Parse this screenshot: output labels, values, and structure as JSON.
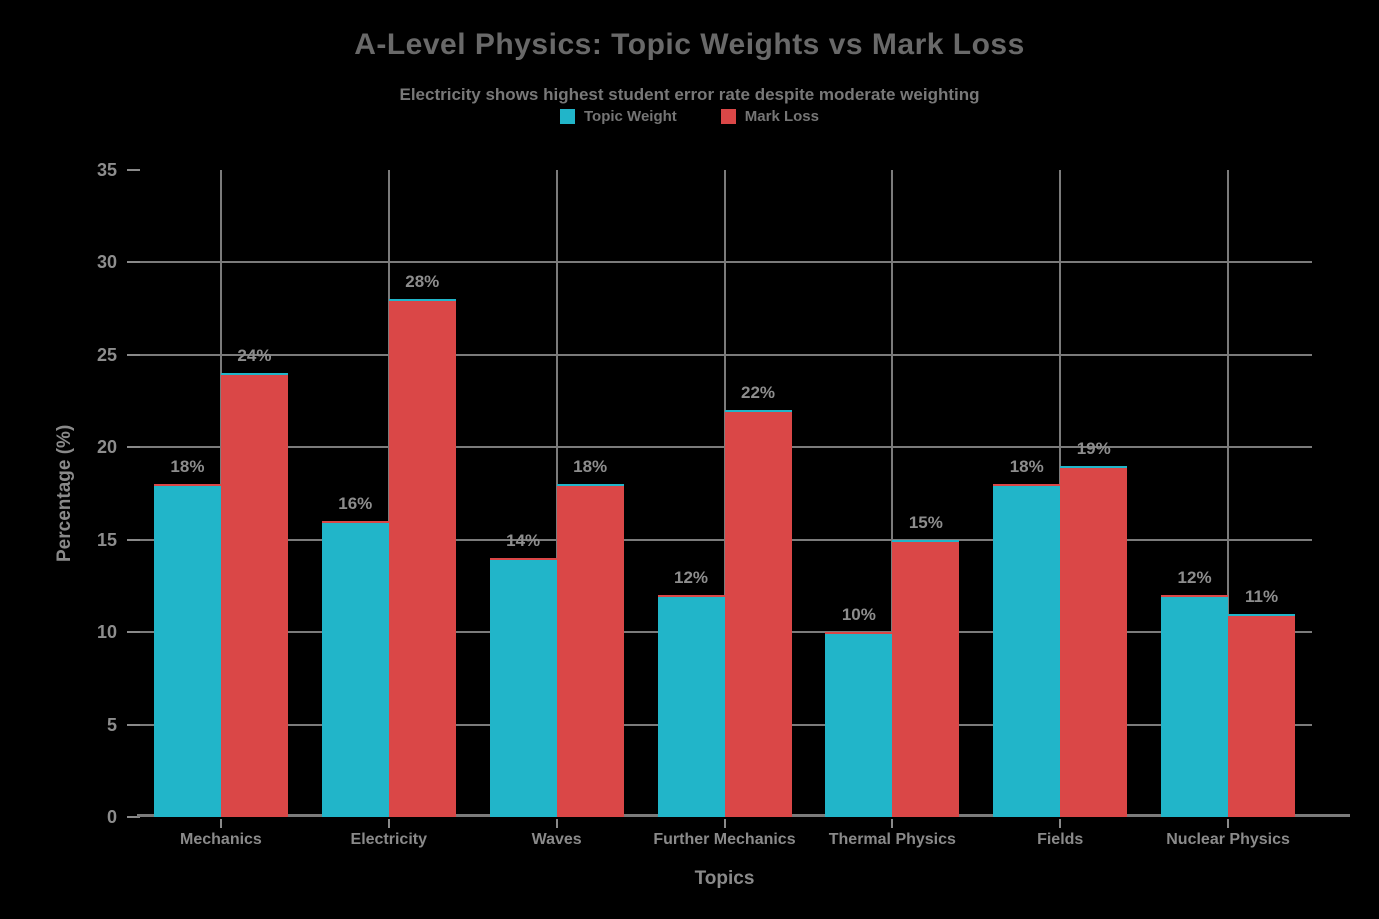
{
  "title": "A-Level Physics: Topic Weights vs Mark Loss",
  "subtitle": "Electricity shows highest student error rate despite moderate weighting",
  "axes": {
    "x_label": "Topics",
    "y_label": "Percentage (%)"
  },
  "chart_data": {
    "type": "bar",
    "title": "A-Level Physics: Topic Weights vs Mark Loss",
    "subtitle": "Electricity shows highest student error rate despite moderate weighting",
    "categories": [
      "Mechanics",
      "Electricity",
      "Waves",
      "Further Mechanics",
      "Thermal Physics",
      "Fields",
      "Nuclear Physics"
    ],
    "series": [
      {
        "name": "Topic Weight",
        "color": "#21b5c9",
        "values": [
          18,
          16,
          14,
          12,
          10,
          18,
          12
        ]
      },
      {
        "name": "Mark Loss",
        "color": "#da4747",
        "values": [
          24,
          28,
          18,
          22,
          15,
          19,
          11
        ]
      }
    ],
    "xlabel": "Topics",
    "ylabel": "Percentage (%)",
    "ylim": [
      0,
      35
    ],
    "yticks": [
      0,
      5,
      10,
      15,
      20,
      25,
      30,
      35
    ],
    "grid": true,
    "legend_position": "top",
    "data_label_suffix": "%"
  },
  "style": {
    "background_color": "#000000",
    "grid_color": "#7b7b7b",
    "axis_color": "#7b7b7b",
    "title_color": "#696969",
    "subtitle_color": "#787878",
    "tick_label_color": "#8d8d8d",
    "legend_text_color": "#757575"
  }
}
